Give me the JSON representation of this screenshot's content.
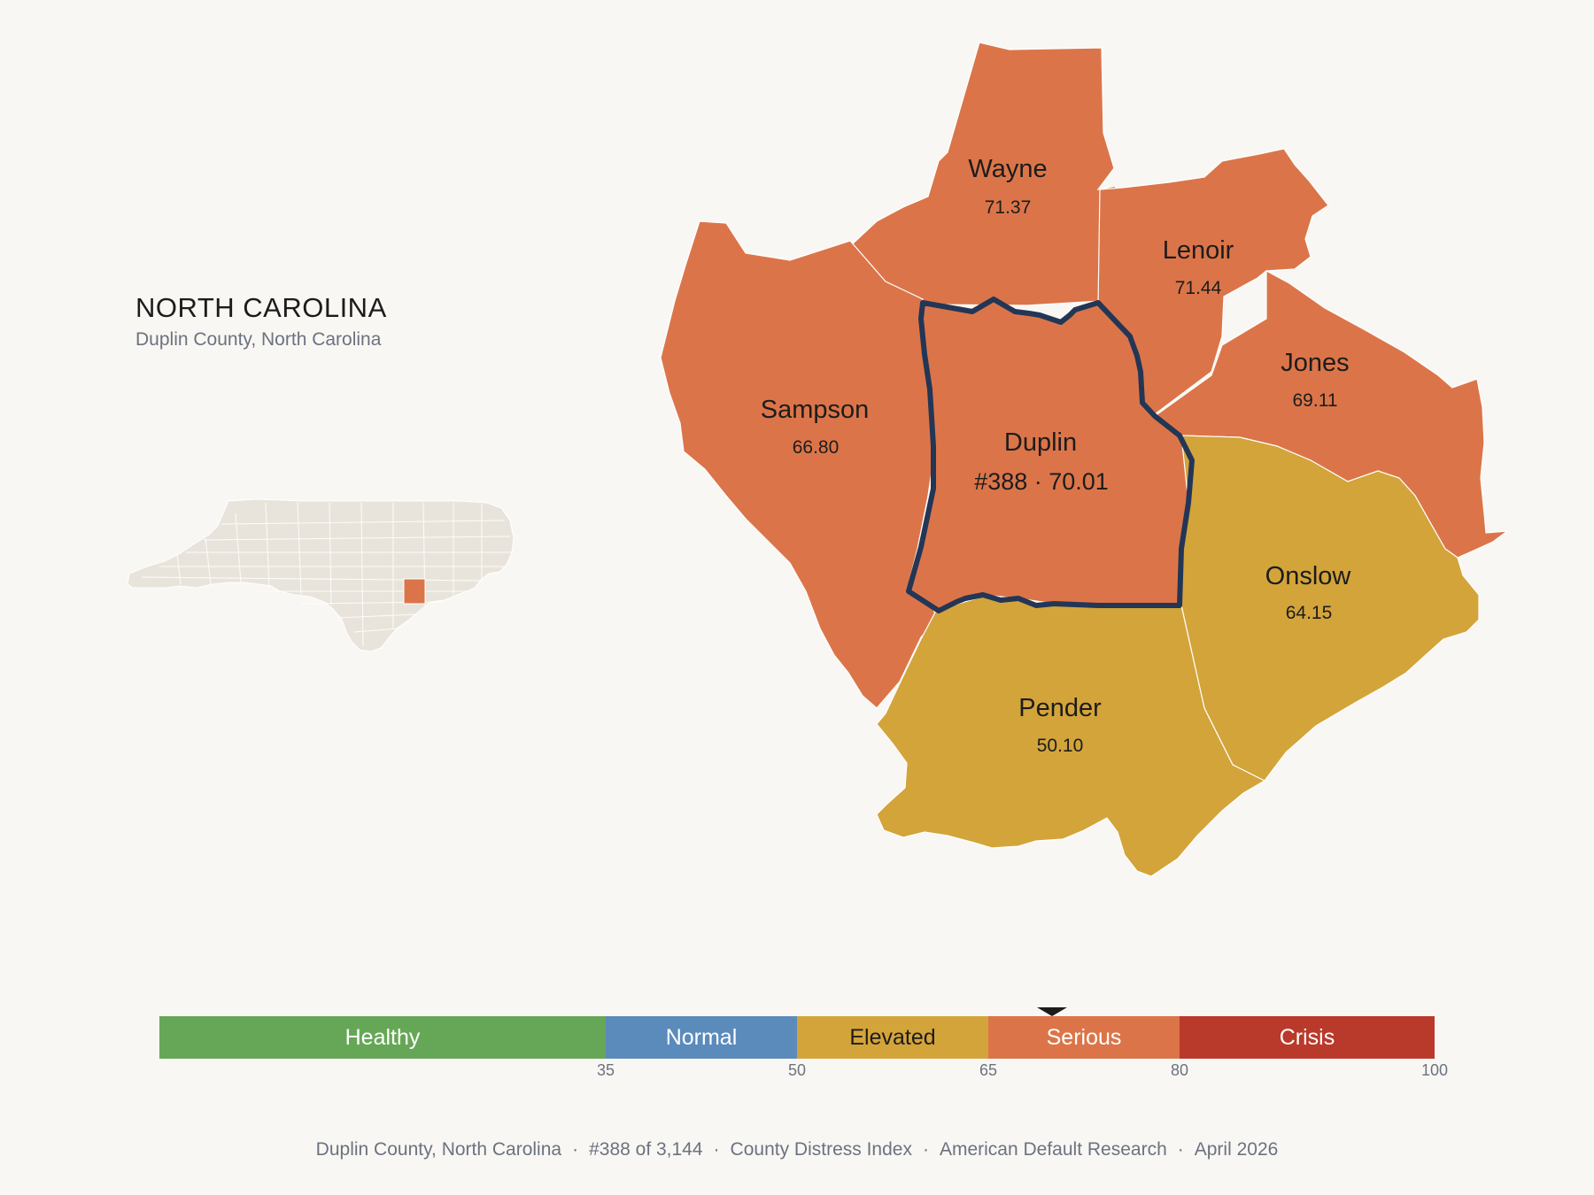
{
  "header": {
    "state": "NORTH CAROLINA",
    "subtitle": "Duplin County, North Carolina"
  },
  "colors": {
    "background": "#f9f7f3",
    "serious": "#db7549",
    "elevated": "#d3a43a",
    "normal": "#5b8bbb",
    "healthy": "#66a757",
    "crisis": "#b93a2b",
    "focus_outline": "#233656",
    "locator_fill": "#e9e4db"
  },
  "map": {
    "counties": [
      {
        "name": "Wayne",
        "value": "71.37",
        "category": "serious"
      },
      {
        "name": "Lenoir",
        "value": "71.44",
        "category": "serious"
      },
      {
        "name": "Jones",
        "value": "69.11",
        "category": "serious"
      },
      {
        "name": "Sampson",
        "value": "66.80",
        "category": "serious"
      },
      {
        "name": "Onslow",
        "value": "64.15",
        "category": "elevated"
      },
      {
        "name": "Pender",
        "value": "50.10",
        "category": "elevated"
      }
    ],
    "focus": {
      "name": "Duplin",
      "label": "#388 · 70.01",
      "rank": 388,
      "value": 70.01,
      "category": "serious"
    }
  },
  "scale": {
    "segments": [
      {
        "label": "Healthy",
        "from": 0,
        "to": 35,
        "color": "#66a757"
      },
      {
        "label": "Normal",
        "from": 35,
        "to": 50,
        "color": "#5b8bbb"
      },
      {
        "label": "Elevated",
        "from": 50,
        "to": 65,
        "color": "#d3a43a"
      },
      {
        "label": "Serious",
        "from": 65,
        "to": 80,
        "color": "#db7549"
      },
      {
        "label": "Crisis",
        "from": 80,
        "to": 100,
        "color": "#b93a2b"
      }
    ],
    "ticks": [
      "35",
      "50",
      "65",
      "80",
      "100"
    ],
    "marker_value": 70.01
  },
  "footer": {
    "county": "Duplin County, North Carolina",
    "rank": "#388 of 3,144",
    "index": "County Distress Index",
    "source": "American Default Research",
    "date": "April 2026"
  }
}
